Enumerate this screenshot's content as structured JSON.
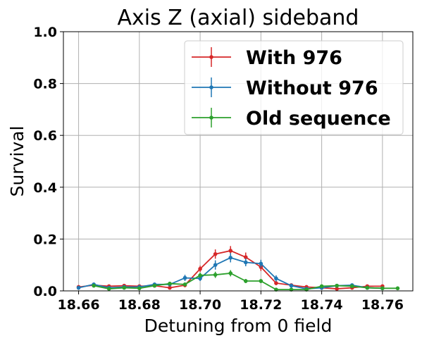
{
  "chart_data": {
    "type": "line",
    "title": "Axis Z (axial) sideband",
    "xlabel": "Detuning from 0 field",
    "ylabel": "Survival",
    "xlim": [
      18.655,
      18.77
    ],
    "ylim": [
      0.0,
      1.0
    ],
    "xticks": [
      "18.66",
      "18.68",
      "18.70",
      "18.72",
      "18.74",
      "18.76"
    ],
    "yticks": [
      "0.0",
      "0.2",
      "0.4",
      "0.6",
      "0.8",
      "1.0"
    ],
    "grid": true,
    "legend_position": "top-right",
    "x": [
      18.66,
      18.665,
      18.67,
      18.675,
      18.68,
      18.685,
      18.69,
      18.695,
      18.7,
      18.705,
      18.71,
      18.715,
      18.72,
      18.725,
      18.73,
      18.735,
      18.74,
      18.745,
      18.75,
      18.755,
      18.76,
      18.765
    ],
    "series": [
      {
        "name": "With 976",
        "color": "#d62728",
        "values": [
          0.015,
          0.022,
          0.018,
          0.02,
          0.018,
          0.02,
          0.012,
          0.022,
          0.085,
          0.142,
          0.155,
          0.13,
          0.092,
          0.03,
          0.022,
          0.015,
          0.012,
          0.008,
          0.012,
          0.018,
          0.018,
          null
        ],
        "errors": [
          0.005,
          0.005,
          0.005,
          0.005,
          0.005,
          0.005,
          0.005,
          0.008,
          0.012,
          0.018,
          0.018,
          0.018,
          0.015,
          0.008,
          0.006,
          0.005,
          0.005,
          0.005,
          0.005,
          0.005,
          0.005,
          null
        ]
      },
      {
        "name": "Without 976",
        "color": "#1f77b4",
        "values": [
          0.012,
          0.025,
          0.012,
          0.015,
          0.015,
          0.025,
          0.025,
          0.05,
          0.048,
          0.1,
          0.128,
          0.11,
          0.105,
          0.048,
          0.02,
          0.008,
          0.012,
          0.02,
          0.022,
          0.012,
          0.01,
          null
        ],
        "errors": [
          0.005,
          0.005,
          0.005,
          0.005,
          0.005,
          0.006,
          0.006,
          0.012,
          0.01,
          0.018,
          0.018,
          0.015,
          0.015,
          0.012,
          0.008,
          0.005,
          0.005,
          0.006,
          0.006,
          0.005,
          0.005,
          null
        ]
      },
      {
        "name": "Old sequence",
        "color": "#2ca02c",
        "values": [
          null,
          0.02,
          0.008,
          0.012,
          0.01,
          0.02,
          0.028,
          0.025,
          0.06,
          0.062,
          0.068,
          0.038,
          0.038,
          0.005,
          0.005,
          0.005,
          0.018,
          0.02,
          0.018,
          0.012,
          0.01,
          0.01
        ],
        "errors": [
          null,
          0.005,
          0.004,
          0.004,
          0.004,
          0.005,
          0.005,
          0.005,
          0.01,
          0.012,
          0.012,
          0.008,
          0.008,
          0.003,
          0.003,
          0.003,
          0.005,
          0.005,
          0.005,
          0.004,
          0.004,
          0.004
        ]
      }
    ]
  }
}
